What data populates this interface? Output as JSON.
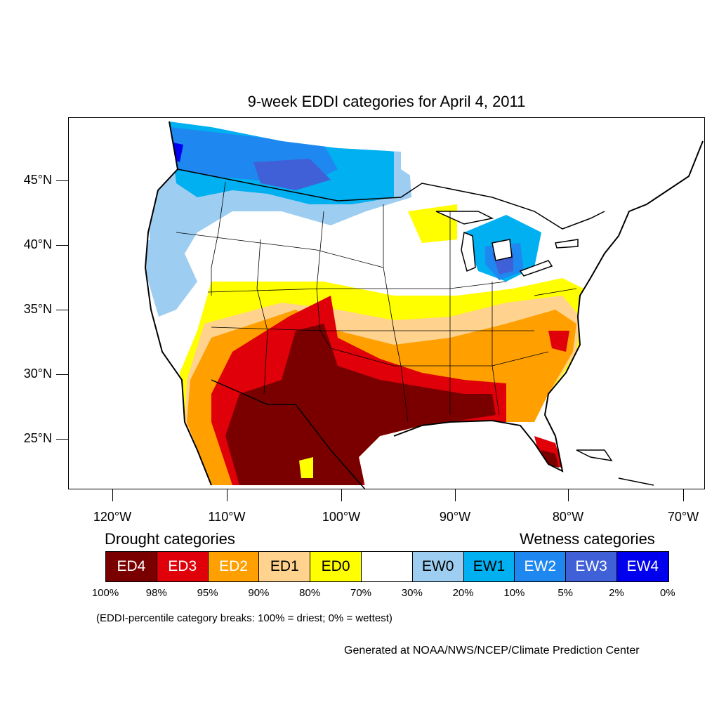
{
  "title": "9-week EDDI categories for April 4, 2011",
  "lat_labels": [
    "45°N",
    "40°N",
    "35°N",
    "30°N",
    "25°N"
  ],
  "lon_labels": [
    "120°W",
    "110°W",
    "100°W",
    "90°W",
    "80°W",
    "70°W"
  ],
  "legend": {
    "drought_heading": "Drought categories",
    "wetness_heading": "Wetness categories",
    "categories": [
      {
        "label": "ED4",
        "color": "#7a0000",
        "text_color": "#ffffff"
      },
      {
        "label": "ED3",
        "color": "#e0000a",
        "text_color": "#ffffff"
      },
      {
        "label": "ED2",
        "color": "#ff9f00",
        "text_color": "#ffffff"
      },
      {
        "label": "ED1",
        "color": "#ffd38d",
        "text_color": "#000000"
      },
      {
        "label": "ED0",
        "color": "#ffff00",
        "text_color": "#000000"
      },
      {
        "label": "",
        "color": "#ffffff",
        "text_color": "#000000"
      },
      {
        "label": "EW0",
        "color": "#9dcdf0",
        "text_color": "#000000"
      },
      {
        "label": "EW1",
        "color": "#00b0f0",
        "text_color": "#000000"
      },
      {
        "label": "EW2",
        "color": "#1e88f0",
        "text_color": "#ffffff"
      },
      {
        "label": "EW3",
        "color": "#4060d8",
        "text_color": "#ffffff"
      },
      {
        "label": "EW4",
        "color": "#0000ee",
        "text_color": "#ffffff"
      }
    ],
    "percentile_breaks": [
      "100%",
      "98%",
      "95%",
      "90%",
      "80%",
      "70%",
      "30%",
      "20%",
      "10%",
      "5%",
      "2%",
      "0%"
    ]
  },
  "note": "(EDDI-percentile category breaks: 100% = driest; 0% = wettest)",
  "credit": "Generated at NOAA/NWS/NCEP/Climate Prediction Center"
}
